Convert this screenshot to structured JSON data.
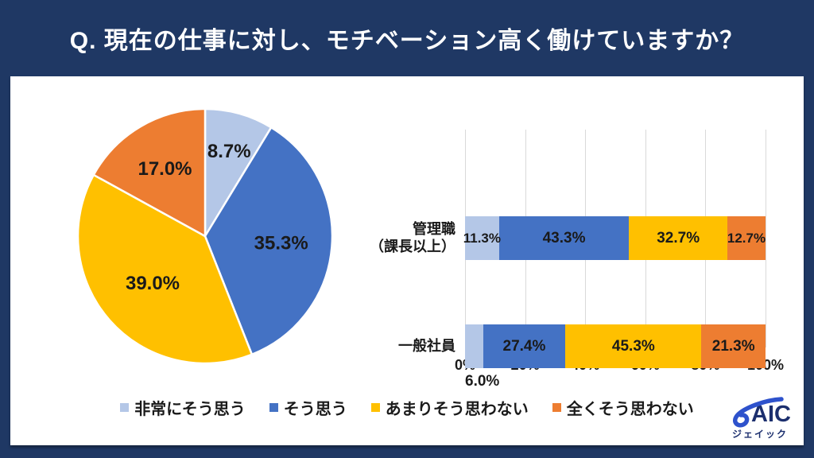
{
  "header": {
    "title": "Q. 現在の仕事に対し、モチベーション高く働けていますか？"
  },
  "palette": {
    "background": "#1F3864",
    "card": "#FFFFFF",
    "series": [
      "#B4C7E7",
      "#4472C4",
      "#FFC000",
      "#ED7D31"
    ],
    "label_text": "#1A1A1A",
    "gridline": "#D9D9D9",
    "title_text": "#FFFFFF"
  },
  "legend": {
    "position": "bottom-center",
    "items": [
      {
        "label": "非常にそう思う",
        "color": "#B4C7E7"
      },
      {
        "label": "そう思う",
        "color": "#4472C4"
      },
      {
        "label": "あまりそう思わない",
        "color": "#FFC000"
      },
      {
        "label": "全くそう思わない",
        "color": "#ED7D31"
      }
    ]
  },
  "chart_data": [
    {
      "type": "pie",
      "labels": [
        "非常にそう思う",
        "そう思う",
        "あまりそう思わない",
        "全くそう思わない"
      ],
      "values": [
        8.7,
        35.3,
        39.0,
        17.0
      ],
      "value_labels": [
        "8.7%",
        "35.3%",
        "39.0%",
        "17.0%"
      ],
      "colors": [
        "#B4C7E7",
        "#4472C4",
        "#FFC000",
        "#ED7D31"
      ],
      "start_angle": "top",
      "direction": "clockwise"
    },
    {
      "type": "bar",
      "variant": "horizontal-stacked",
      "categories": [
        [
          "管理職",
          "（課長以上）"
        ],
        [
          "一般社員"
        ]
      ],
      "series": [
        {
          "name": "非常にそう思う",
          "color": "#B4C7E7",
          "values": [
            11.3,
            6.0
          ],
          "value_labels": [
            "11.3%",
            "6.0%"
          ]
        },
        {
          "name": "そう思う",
          "color": "#4472C4",
          "values": [
            43.3,
            27.4
          ],
          "value_labels": [
            "43.3%",
            "27.4%"
          ]
        },
        {
          "name": "あまりそう思わない",
          "color": "#FFC000",
          "values": [
            32.7,
            45.3
          ],
          "value_labels": [
            "32.7%",
            "45.3%"
          ]
        },
        {
          "name": "全くそう思わない",
          "color": "#ED7D31",
          "values": [
            12.7,
            21.3
          ],
          "value_labels": [
            "12.7%",
            "21.3%"
          ]
        }
      ],
      "x_ticks": [
        "0%",
        "20%",
        "40%",
        "60%",
        "80%",
        "100%"
      ],
      "xlim": [
        0,
        100
      ],
      "grid": true
    }
  ],
  "logo": {
    "name": "JAIC",
    "text": "AIC",
    "subtext": "ジェイック"
  }
}
